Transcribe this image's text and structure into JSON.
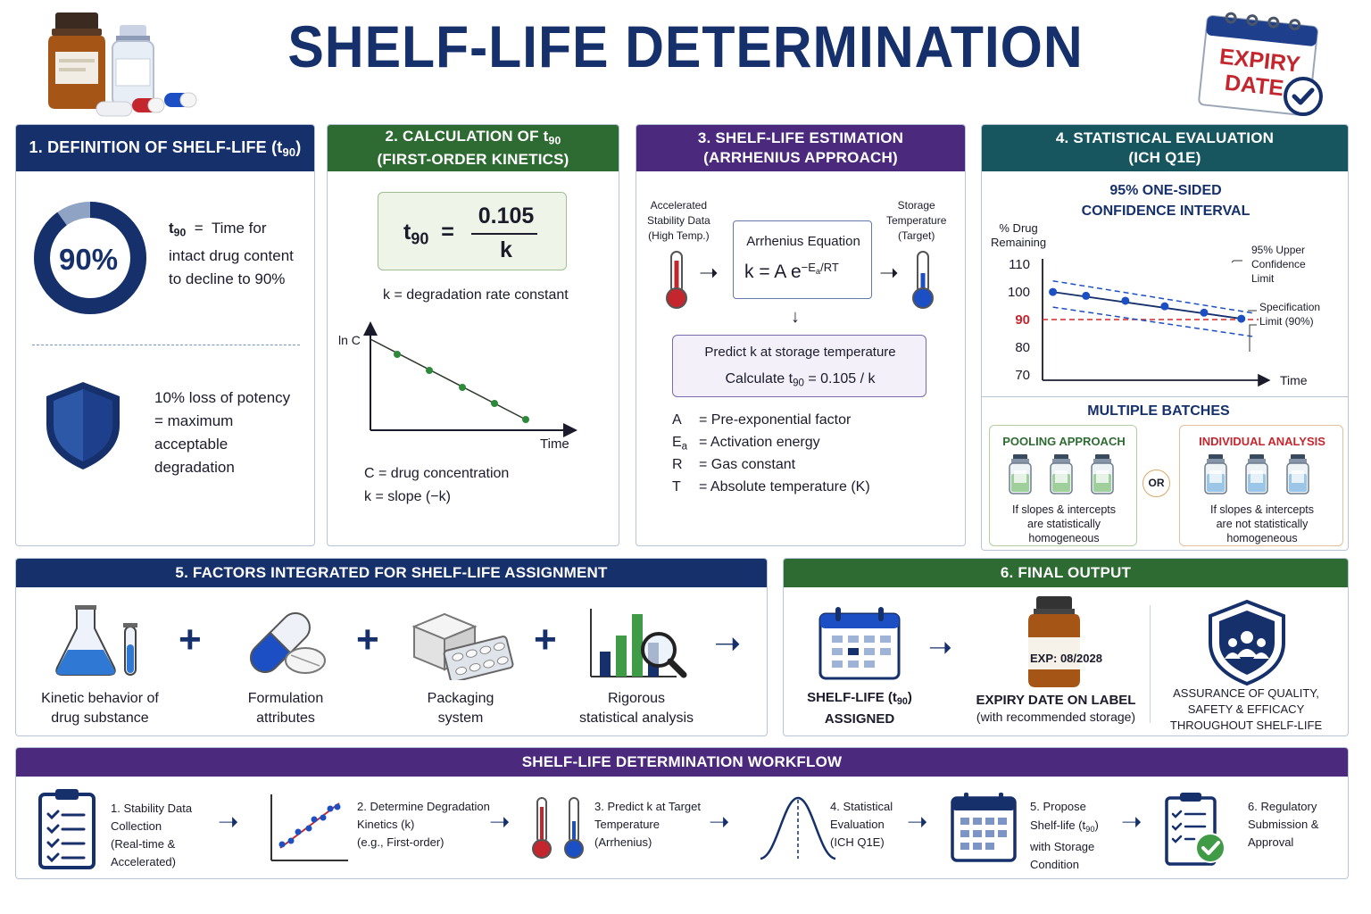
{
  "title": "SHELF-LIFE DETERMINATION",
  "expiry_badge": {
    "line1": "EXPIRY",
    "line2": "DATE"
  },
  "p1": {
    "head_pre": "1. DEFINITION OF SHELF-LIFE (t",
    "head_sub": "90",
    "head_post": ")",
    "donut_label": "90%",
    "donut_fraction": 0.9,
    "def_sym": "t",
    "def_sub": "90",
    "def_eq": "=",
    "def_l1": "Time for",
    "def_l2": "intact drug content",
    "def_l3": "to decline to 90%",
    "loss_l1": "10% loss of potency",
    "loss_l2": "= maximum",
    "loss_l3": "acceptable",
    "loss_l4": "degradation"
  },
  "p2": {
    "head1_pre": "2. CALCULATION OF t",
    "head1_sub": "90",
    "head2": "(FIRST-ORDER KINETICS)",
    "formula_sym": "t",
    "formula_sub": "90",
    "formula_eq": "=",
    "formula_num": "0.105",
    "formula_den": "k",
    "kdef": "k  =  degradation rate constant",
    "y_label": "ln C",
    "x_label": "Time",
    "c_def": "C  =  drug concentration",
    "k_slope": "k  =  slope (−k)"
  },
  "p3": {
    "head1": "3. SHELF-LIFE ESTIMATION",
    "head2": "(ARRHENIUS APPROACH)",
    "acc_l1": "Accelerated",
    "acc_l2": "Stability Data",
    "acc_l3": "(High Temp.)",
    "arr_title": "Arrhenius Equation",
    "arr_eq": "k = A e",
    "arr_exp_pre": "−E",
    "arr_exp_sub": "a",
    "arr_exp_post": "/RT",
    "sto_l1": "Storage",
    "sto_l2": "Temperature",
    "sto_l3": "(Target)",
    "pred_l1": "Predict k at storage temperature",
    "pred_l2_pre": "Calculate  t",
    "pred_l2_sub": "90",
    "pred_l2_post": "  =  0.105 / k",
    "defs": [
      {
        "sym": "A",
        "sub": "",
        "desc": "=  Pre-exponential factor"
      },
      {
        "sym": "E",
        "sub": "a",
        "desc": "=  Activation energy"
      },
      {
        "sym": "R",
        "sub": "",
        "desc": "=  Gas constant"
      },
      {
        "sym": "T",
        "sub": "",
        "desc": "=  Absolute temperature (K)"
      }
    ]
  },
  "p4": {
    "head1": "4. STATISTICAL EVALUATION",
    "head2": "(ICH Q1E)",
    "ci_l1": "95% ONE-SIDED",
    "ci_l2": "CONFIDENCE INTERVAL",
    "y_label_l1": "% Drug",
    "y_label_l2": "Remaining",
    "y_ticks": [
      "110",
      "100",
      "90",
      "80",
      "70"
    ],
    "x_label": "Time",
    "ucl_l1": "95% Upper",
    "ucl_l2": "Confidence",
    "ucl_l3": "Limit",
    "spec_l1": "Specification",
    "spec_l2": "Limit (90%)",
    "batches_title": "MULTIPLE BATCHES",
    "pool_title": "POOLING APPROACH",
    "pool_l1": "If slopes & intercepts",
    "pool_l2": "are statistically",
    "pool_l3": "homogeneous",
    "or": "OR",
    "ind_title": "INDIVIDUAL ANALYSIS",
    "ind_l1": "If slopes & intercepts",
    "ind_l2": "are not statistically",
    "ind_l3": "homogeneous"
  },
  "chart_data": {
    "type": "line",
    "title": "95% ONE-SIDED CONFIDENCE INTERVAL",
    "xlabel": "Time",
    "ylabel": "% Drug Remaining",
    "y_ticks": [
      110,
      100,
      90,
      80,
      70
    ],
    "ylim": [
      68,
      112
    ],
    "xlim": [
      0,
      10
    ],
    "series": [
      {
        "name": "",
        "x": [
          0.5,
          2.1,
          4.0,
          5.9,
          7.8,
          9.6
        ],
        "values": [
          100,
          98.6,
          96.8,
          94.8,
          92.5,
          90.3
        ]
      }
    ],
    "reference_line": 90
  },
  "p5": {
    "head": "5. FACTORS INTEGRATED FOR SHELF-LIFE ASSIGNMENT",
    "plus": "+",
    "f1_l1": "Kinetic behavior of",
    "f1_l2": "drug substance",
    "f2_l1": "Formulation",
    "f2_l2": "attributes",
    "f3_l1": "Packaging",
    "f3_l2": "system",
    "f4_l1": "Rigorous",
    "f4_l2": "statistical analysis"
  },
  "p6": {
    "head": "6. FINAL OUTPUT",
    "o1_l1_pre": "SHELF-LIFE (t",
    "o1_l1_sub": "90",
    "o1_l1_post": ")",
    "o1_l2": "ASSIGNED",
    "exp_label": "EXP: 08/2028",
    "o2_l1": "EXPIRY DATE ON LABEL",
    "o2_l2": "(with recommended storage)",
    "o3_l1": "ASSURANCE OF QUALITY,",
    "o3_l2": "SAFETY & EFFICACY",
    "o3_l3": "THROUGHOUT SHELF-LIFE"
  },
  "wf": {
    "head": "SHELF-LIFE DETERMINATION WORKFLOW",
    "s1": [
      "1. Stability Data",
      "Collection",
      "(Real-time &",
      "Accelerated)"
    ],
    "s2": [
      "2. Determine Degradation",
      "Kinetics (k)",
      "(e.g., First-order)"
    ],
    "s3": [
      "3. Predict k at Target",
      "Temperature",
      "(Arrhenius)"
    ],
    "s4": [
      "4. Statistical",
      "Evaluation",
      "(ICH Q1E)"
    ],
    "s5_l1": "5. Propose",
    "s5_l2_pre": "Shelf-life (t",
    "s5_l2_sub": "90",
    "s5_l2_post": ")",
    "s5_l3": "with Storage",
    "s5_l4": "Condition",
    "s6": [
      "6. Regulatory",
      "Submission &",
      "Approval"
    ]
  },
  "colors": {
    "navy": "#15306b",
    "green": "#2e6b32",
    "purple": "#4b2a7d",
    "teal": "#17555f",
    "red": "#c4262e",
    "blue": "#1d4fc4"
  }
}
